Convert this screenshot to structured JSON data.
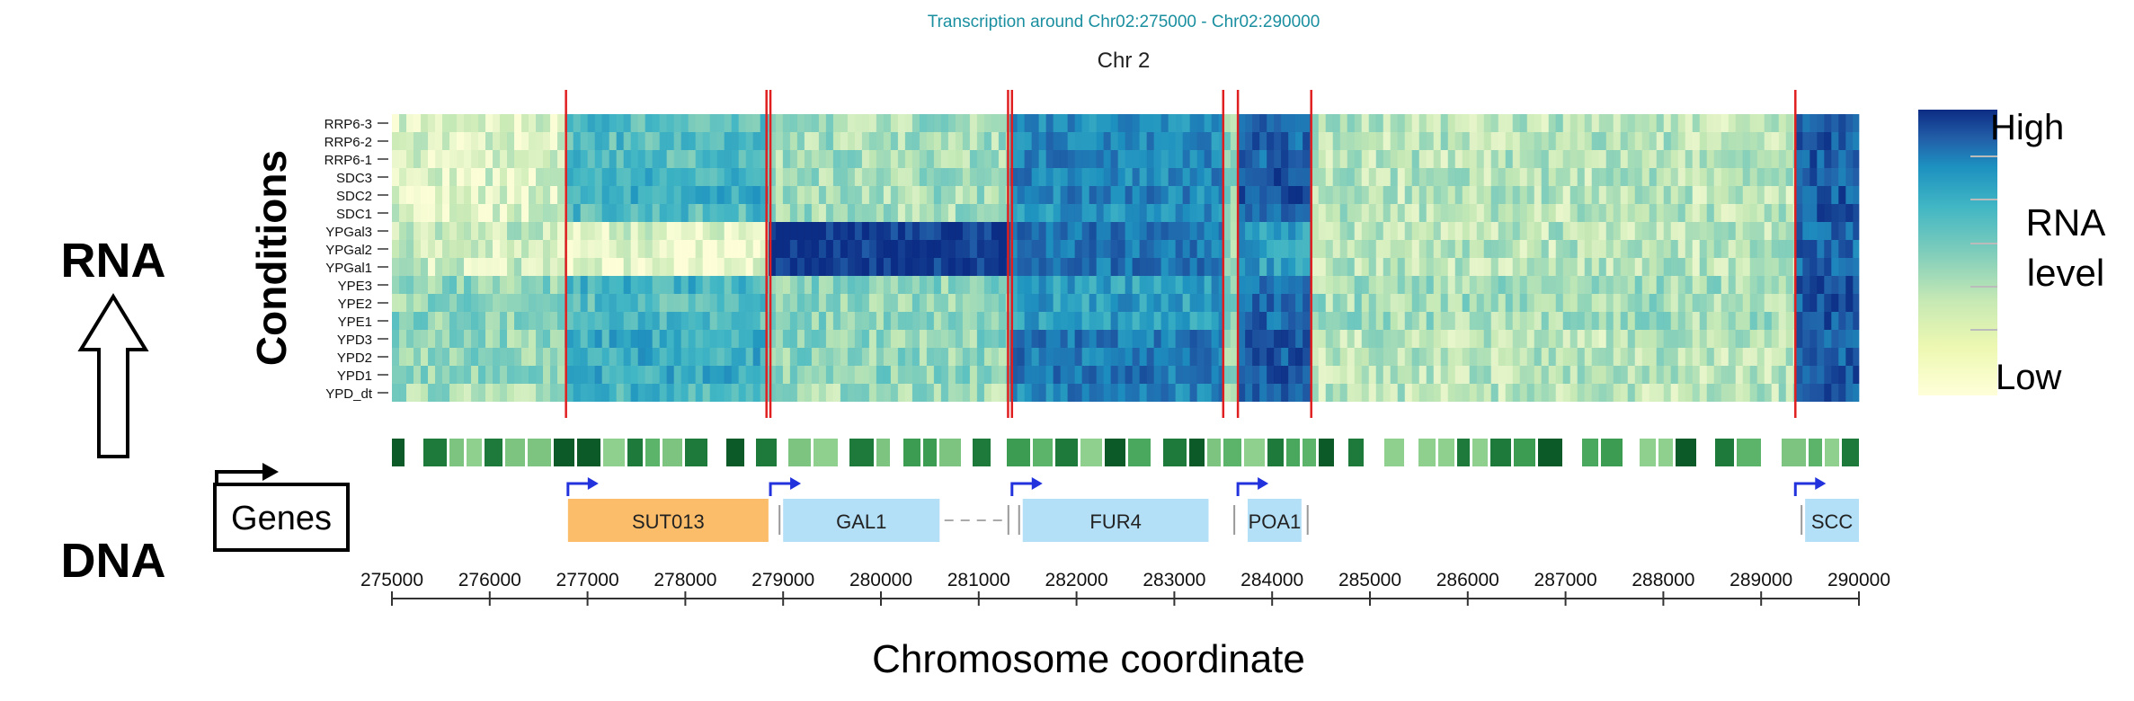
{
  "chart_data": {
    "type": "heatmap",
    "title": "Transcription around Chr02:275000 - Chr02:290000",
    "subtitle": "Chr 2",
    "ylabel": "Conditions",
    "xlabel": "Chromosome coordinate",
    "xlim": [
      275000,
      290000
    ],
    "x_ticks": [
      275000,
      276000,
      277000,
      278000,
      279000,
      280000,
      281000,
      282000,
      283000,
      284000,
      285000,
      286000,
      287000,
      288000,
      289000,
      290000
    ],
    "conditions": [
      "RRP6-3",
      "RRP6-2",
      "RRP6-1",
      "SDC3",
      "SDC2",
      "SDC1",
      "YPGal3",
      "YPGal2",
      "YPGal1",
      "YPE3",
      "YPE2",
      "YPE1",
      "YPD3",
      "YPD2",
      "YPD1",
      "YPD_dt"
    ],
    "colorbar": {
      "high_label": "High",
      "low_label": "Low",
      "title": "RNA level",
      "colors": [
        "#ffffd9",
        "#c7e9b4",
        "#7fcdbb",
        "#41b6c4",
        "#1d91c0",
        "#225ea8",
        "#0c2c84"
      ]
    },
    "segments": [
      {
        "start": 275000,
        "end": 276780,
        "levels": [
          0.1,
          0.1,
          0.1,
          0.1,
          0.1,
          0.1,
          0.15,
          0.15,
          0.15,
          0.3,
          0.3,
          0.3,
          0.3,
          0.3,
          0.3,
          0.25
        ]
      },
      {
        "start": 276780,
        "end": 278850,
        "levels": [
          0.45,
          0.45,
          0.45,
          0.5,
          0.55,
          0.45,
          0.1,
          0.05,
          0.05,
          0.5,
          0.45,
          0.45,
          0.55,
          0.55,
          0.55,
          0.5
        ]
      },
      {
        "start": 278850,
        "end": 281320,
        "levels": [
          0.25,
          0.25,
          0.25,
          0.25,
          0.25,
          0.25,
          0.97,
          0.97,
          0.97,
          0.3,
          0.3,
          0.3,
          0.3,
          0.3,
          0.3,
          0.25
        ]
      },
      {
        "start": 281320,
        "end": 283500,
        "levels": [
          0.7,
          0.7,
          0.7,
          0.7,
          0.7,
          0.65,
          0.75,
          0.75,
          0.75,
          0.6,
          0.6,
          0.6,
          0.75,
          0.75,
          0.75,
          0.7
        ]
      },
      {
        "start": 283500,
        "end": 283650,
        "levels": [
          0.3,
          0.3,
          0.3,
          0.3,
          0.3,
          0.3,
          0.3,
          0.3,
          0.3,
          0.3,
          0.3,
          0.3,
          0.3,
          0.3,
          0.3,
          0.3
        ]
      },
      {
        "start": 283650,
        "end": 284400,
        "levels": [
          0.8,
          0.8,
          0.8,
          0.9,
          0.9,
          0.85,
          0.6,
          0.6,
          0.6,
          0.8,
          0.8,
          0.8,
          0.85,
          0.85,
          0.85,
          0.85
        ]
      },
      {
        "start": 284400,
        "end": 289350,
        "levels": [
          0.2,
          0.2,
          0.2,
          0.2,
          0.2,
          0.2,
          0.2,
          0.2,
          0.2,
          0.25,
          0.25,
          0.25,
          0.2,
          0.2,
          0.2,
          0.2
        ]
      },
      {
        "start": 289350,
        "end": 290000,
        "levels": [
          0.85,
          0.85,
          0.85,
          0.85,
          0.85,
          0.85,
          0.8,
          0.8,
          0.8,
          0.85,
          0.85,
          0.85,
          0.85,
          0.85,
          0.85,
          0.85
        ]
      }
    ],
    "boundaries": [
      276780,
      278830,
      278870,
      281300,
      281340,
      283500,
      283650,
      284400,
      289350
    ],
    "genes": [
      {
        "name": "SUT013",
        "start": 276800,
        "end": 278850,
        "color": "#fbbd6a",
        "tss": 276800
      },
      {
        "name": "GAL1",
        "start": 279000,
        "end": 280600,
        "color": "#b3dff7",
        "tss": 278870
      },
      {
        "name": "FUR4",
        "start": 281450,
        "end": 283350,
        "color": "#b3dff7",
        "tss": 281340
      },
      {
        "name": "POA1",
        "start": 283750,
        "end": 284300,
        "color": "#b3dff7",
        "tss": 283650
      },
      {
        "name": "SCC",
        "start": 289450,
        "end": 290000,
        "color": "#b3dff7",
        "tss": 289350
      }
    ],
    "gene_separators": [
      278850,
      279000,
      281340,
      281450,
      283650,
      284400,
      289450
    ]
  },
  "annotations": {
    "rna_label": "RNA",
    "dna_label": "DNA",
    "genes_label": "Genes",
    "rna_level_line1": "RNA",
    "rna_level_line2": "level"
  }
}
